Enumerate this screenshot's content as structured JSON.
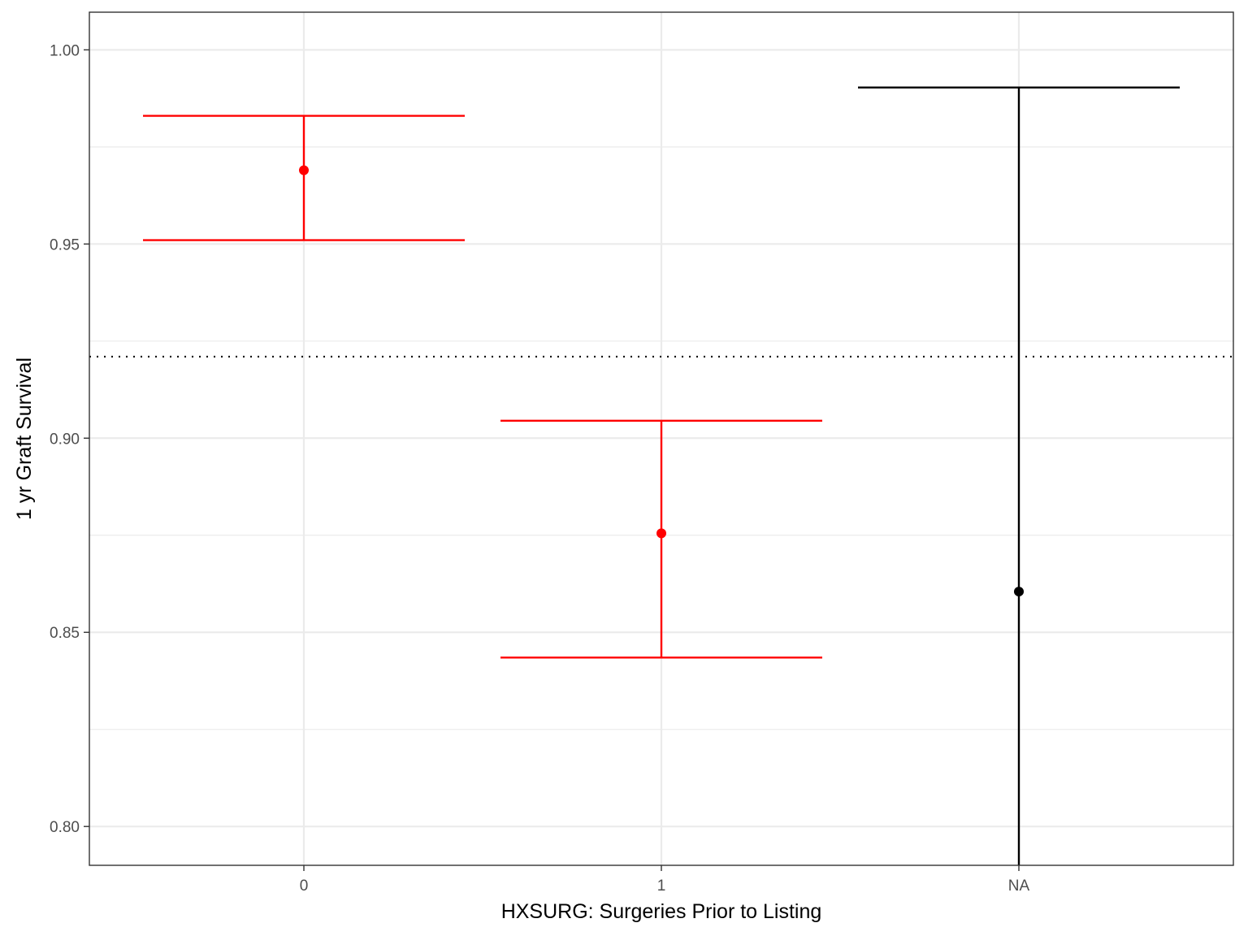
{
  "chart_data": {
    "type": "errorbar",
    "xlabel": "HXSURG: Surgeries Prior to Listing",
    "ylabel": "1 yr Graft Survival",
    "categories": [
      "0",
      "1",
      "NA"
    ],
    "estimates": [
      0.969,
      0.8755,
      0.8605
    ],
    "lower": [
      0.951,
      0.8435,
      0.79
    ],
    "upper": [
      0.983,
      0.9045,
      0.9903
    ],
    "point_colors": [
      "#ff0000",
      "#ff0000",
      "#000000"
    ],
    "reference_line": {
      "y": 0.921,
      "style": "dotted",
      "color": "#000000"
    },
    "ylim": [
      0.79,
      1.0097
    ],
    "yticks": [
      "0.80",
      "0.85",
      "0.90",
      "0.95",
      "1.00"
    ],
    "grid": true,
    "legend": "none"
  }
}
